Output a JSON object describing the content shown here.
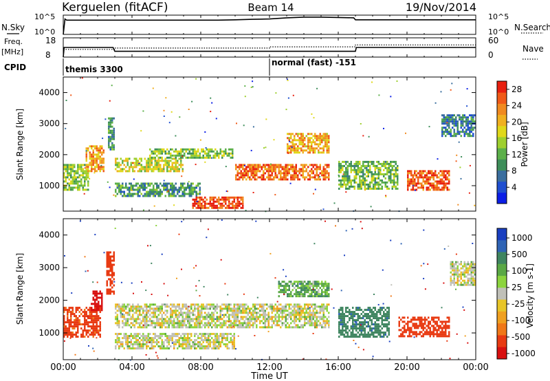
{
  "header": {
    "station": "Kerguelen (fitACF)",
    "beam": "Beam 14",
    "date": "19/Nov/2014"
  },
  "nsky_panel": {
    "left_label": "N.Sky",
    "left_ticks": [
      "10^5",
      "10^0"
    ],
    "right_label": "N.Search",
    "right_ticks": [
      "10^5",
      "10^0"
    ]
  },
  "freq_panel": {
    "left_label_line1": "Freq.",
    "left_label_line2": "[MHz]",
    "left_ticks": [
      "18",
      "8"
    ],
    "right_label": "Nave",
    "right_ticks": [
      "60",
      "0"
    ]
  },
  "cpid": {
    "label": "CPID",
    "mode_1": "themis 3300",
    "mode_2": "normal (fast) -151"
  },
  "time_axis": {
    "label": "Time UT",
    "ticks": [
      "00:00",
      "04:00",
      "08:00",
      "12:00",
      "16:00",
      "20:00",
      "00:00"
    ]
  },
  "chart_data": [
    {
      "type": "line",
      "title": "N.Sky / N.Search",
      "x_unit": "hours UT",
      "xlim": [
        0,
        24
      ],
      "series": [
        {
          "name": "N.Sky",
          "x": [
            0,
            0.1,
            0.2,
            3,
            9,
            10,
            11,
            12,
            13,
            14,
            15,
            16,
            16.9,
            17,
            24
          ],
          "values": [
            1,
            10000.0,
            5000.0,
            5000.0,
            5000.0,
            6000.0,
            8000.0,
            10000.0,
            20000.0,
            30000.0,
            30000.0,
            25000.0,
            20000.0,
            6000.0,
            6000.0
          ]
        },
        {
          "name": "N.Search",
          "x": [
            0,
            24
          ],
          "values": [
            1,
            1
          ]
        }
      ]
    },
    {
      "type": "line",
      "title": "Freq. / Nave",
      "x_unit": "hours UT",
      "xlim": [
        0,
        24
      ],
      "series": [
        {
          "name": "Freq. [MHz]",
          "x": [
            0,
            0.05,
            2.9,
            3.0,
            17.0,
            17.05,
            24
          ],
          "values": [
            8,
            13,
            13,
            11,
            11,
            13,
            13
          ]
        },
        {
          "name": "Nave",
          "x": [
            0,
            3,
            3,
            12,
            12,
            17,
            17,
            24
          ],
          "values": [
            24,
            24,
            28,
            28,
            32,
            32,
            38,
            38
          ]
        }
      ]
    },
    {
      "type": "heatmap",
      "title": "Power",
      "xlabel": "Time UT",
      "ylabel": "Slant Range [km]",
      "xlim": [
        0,
        24
      ],
      "ylim": [
        180,
        4500
      ],
      "yticks": [
        1000,
        2000,
        3000,
        4000
      ],
      "colorbar": {
        "label": "Power [dB]",
        "ticks": [
          "4",
          "8",
          "12",
          "16",
          "20",
          "24",
          "28"
        ],
        "range": [
          0,
          30
        ]
      },
      "features": [
        {
          "t0": 0.0,
          "t1": 1.5,
          "r0": 900,
          "r1": 1700,
          "value": 14
        },
        {
          "t0": 1.3,
          "t1": 2.4,
          "r0": 1500,
          "r1": 2300,
          "value": 22
        },
        {
          "t0": 2.6,
          "t1": 3.0,
          "r0": 2200,
          "r1": 3200,
          "value": 9
        },
        {
          "t0": 3.0,
          "t1": 7.0,
          "r0": 1500,
          "r1": 1900,
          "value": 17
        },
        {
          "t0": 5.0,
          "t1": 10.0,
          "r0": 1900,
          "r1": 2200,
          "value": 14
        },
        {
          "t0": 3.0,
          "t1": 8.0,
          "r0": 700,
          "r1": 1100,
          "value": 10
        },
        {
          "t0": 7.5,
          "t1": 10.5,
          "r0": 280,
          "r1": 650,
          "value": 27
        },
        {
          "t0": 10.0,
          "t1": 15.5,
          "r0": 1200,
          "r1": 1700,
          "value": 25
        },
        {
          "t0": 13.0,
          "t1": 15.5,
          "r0": 2100,
          "r1": 2700,
          "value": 21
        },
        {
          "t0": 16.0,
          "t1": 19.5,
          "r0": 900,
          "r1": 1800,
          "value": 13
        },
        {
          "t0": 20.0,
          "t1": 22.5,
          "r0": 900,
          "r1": 1500,
          "value": 26
        },
        {
          "t0": 22.0,
          "t1": 24.0,
          "r0": 2600,
          "r1": 3300,
          "value": 8
        }
      ]
    },
    {
      "type": "heatmap",
      "title": "Velocity",
      "xlabel": "Time UT",
      "ylabel": "Slant Range [km]",
      "xlim": [
        0,
        24
      ],
      "ylim": [
        180,
        4500
      ],
      "yticks": [
        1000,
        2000,
        3000,
        4000
      ],
      "colorbar": {
        "label": "Velocity [m s-1]",
        "ticks": [
          "1000",
          "500",
          "100",
          "25",
          "-25",
          "-100",
          "-500",
          "-1000"
        ],
        "range": [
          -1000,
          1000
        ]
      },
      "features": [
        {
          "t0": 0.0,
          "t1": 2.2,
          "r0": 900,
          "r1": 1800,
          "value": -300
        },
        {
          "t0": 1.6,
          "t1": 2.3,
          "r0": 1700,
          "r1": 2300,
          "value": -700
        },
        {
          "t0": 2.5,
          "t1": 3.0,
          "r0": 2200,
          "r1": 3500,
          "value": -400
        },
        {
          "t0": 3.0,
          "t1": 15.5,
          "r0": 1200,
          "r1": 1900,
          "value": 0
        },
        {
          "t0": 3.0,
          "t1": 10.0,
          "r0": 500,
          "r1": 1000,
          "value": 0
        },
        {
          "t0": 12.5,
          "t1": 15.5,
          "r0": 2100,
          "r1": 2600,
          "value": 80
        },
        {
          "t0": 16.0,
          "t1": 19.0,
          "r0": 900,
          "r1": 1800,
          "value": 200
        },
        {
          "t0": 19.5,
          "t1": 22.5,
          "r0": 900,
          "r1": 1500,
          "value": -350
        },
        {
          "t0": 22.5,
          "t1": 24.0,
          "r0": 2500,
          "r1": 3200,
          "value": 0
        }
      ]
    }
  ]
}
